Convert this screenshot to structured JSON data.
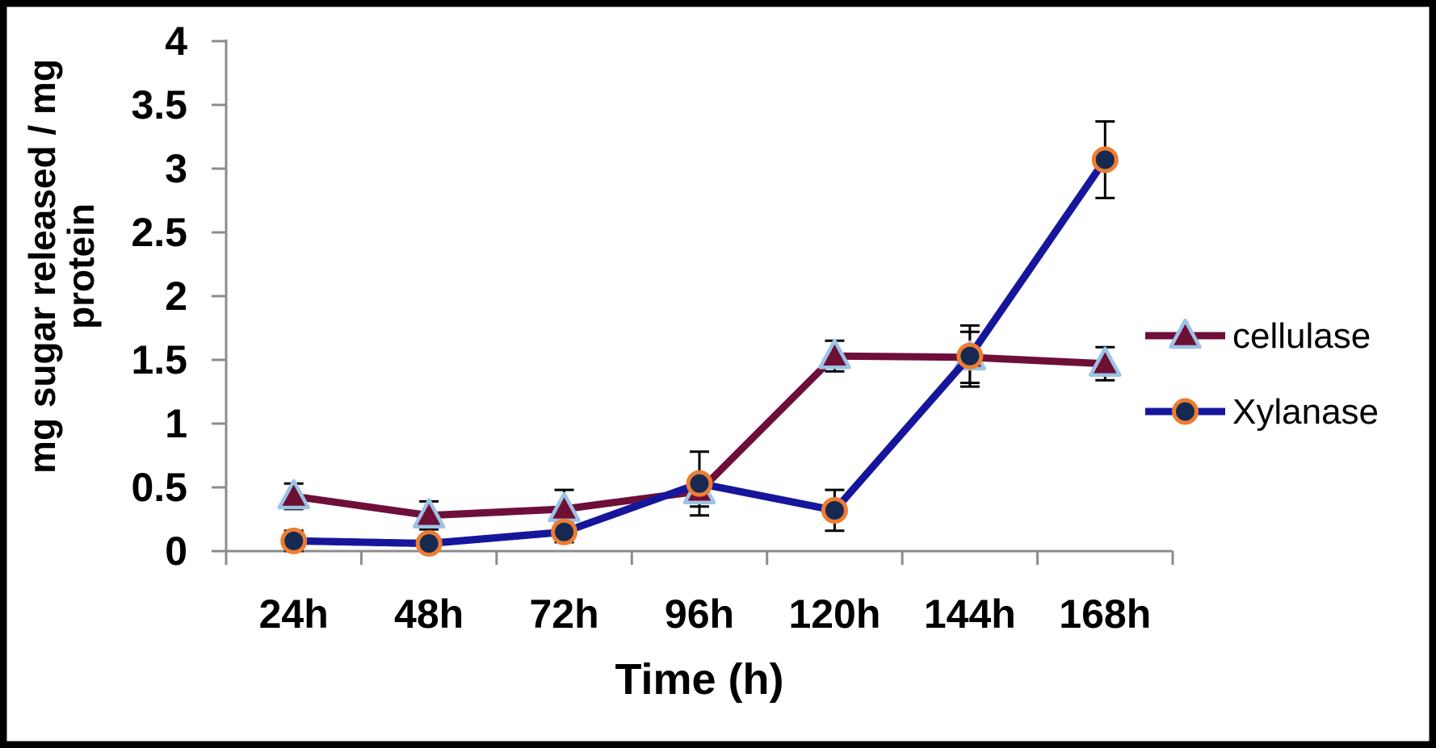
{
  "chart_data": {
    "type": "line",
    "title": "",
    "xlabel": "Time (h)",
    "ylabel": "mg sugar released / mg protein",
    "ylabel_lines": [
      "mg sugar released / mg",
      "protein"
    ],
    "categories": [
      "24h",
      "48h",
      "72h",
      "96h",
      "120h",
      "144h",
      "168h"
    ],
    "y_ticks": [
      "0",
      "0.5",
      "1",
      "1.5",
      "2",
      "2.5",
      "3",
      "3.5",
      "4"
    ],
    "ylim": [
      0,
      4
    ],
    "grid": false,
    "legend_position": "right",
    "axis_color": "#8C8C8C",
    "error_bar_color": "#000000",
    "text_color": "#000000",
    "frame_color": "#000000",
    "series": [
      {
        "name": "cellulase",
        "marker": "triangle",
        "line_color": "#6E0F3A",
        "marker_fill": "#6E1034",
        "marker_stroke": "#9DC3E6",
        "values": [
          0.43,
          0.28,
          0.33,
          0.47,
          1.53,
          1.52,
          1.47
        ],
        "errors": [
          0.1,
          0.11,
          0.15,
          0.12,
          0.12,
          0.2,
          0.13
        ]
      },
      {
        "name": "Xylanase",
        "marker": "circle",
        "line_color": "#16169C",
        "marker_fill": "#162951",
        "marker_stroke": "#ED7D31",
        "values": [
          0.08,
          0.06,
          0.15,
          0.53,
          0.32,
          1.53,
          3.07
        ],
        "errors": [
          0.08,
          0.05,
          0.08,
          0.25,
          0.16,
          0.24,
          0.3
        ]
      }
    ]
  }
}
